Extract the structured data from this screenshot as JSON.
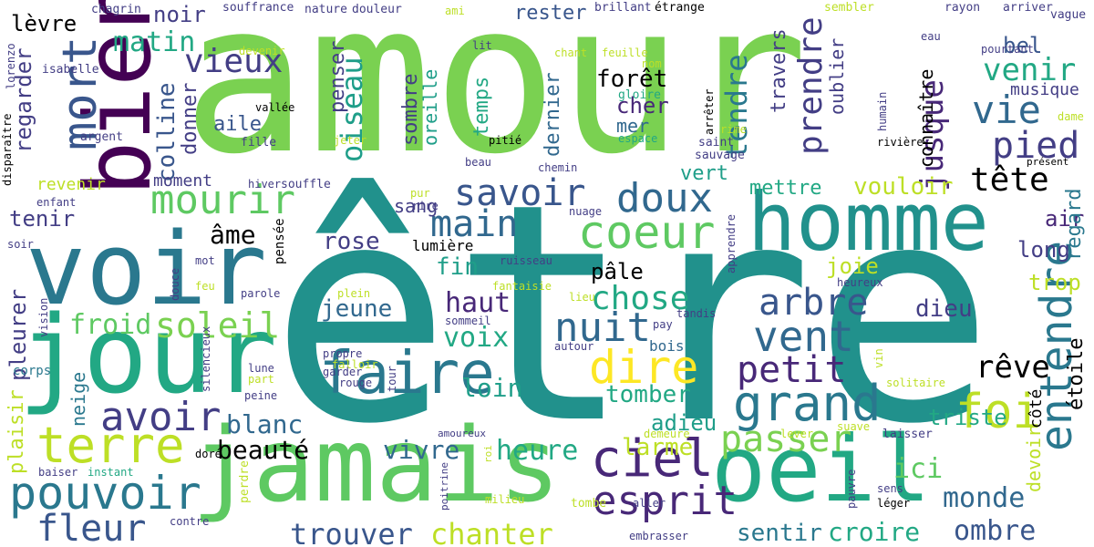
{
  "words": [
    {
      "id": "etre",
      "text": "être",
      "color": "#21918c"
    },
    {
      "id": "amour",
      "text": "amour",
      "color": "#7ad151"
    },
    {
      "id": "jour",
      "text": "jour",
      "color": "#22a884"
    },
    {
      "id": "voir",
      "text": "voir",
      "color": "#2a788e"
    },
    {
      "id": "bien",
      "text": "bien",
      "color": "#440154"
    },
    {
      "id": "homme",
      "text": "homme",
      "color": "#21918c"
    },
    {
      "id": "jamais",
      "text": "jamais",
      "color": "#5ec962"
    },
    {
      "id": "oeil",
      "text": "oeil",
      "color": "#22a884"
    },
    {
      "id": "mort",
      "text": "mort",
      "color": "#39568c"
    },
    {
      "id": "coeur",
      "text": "coeur",
      "color": "#5ec962"
    },
    {
      "id": "faire",
      "text": "faire",
      "color": "#2a788e"
    },
    {
      "id": "entendre",
      "text": "entendre",
      "color": "#2a788e"
    },
    {
      "id": "mourir",
      "text": "mourir",
      "color": "#5ec962"
    },
    {
      "id": "terre",
      "text": "terre",
      "color": "#bddf26"
    },
    {
      "id": "pouvoir",
      "text": "pouvoir",
      "color": "#2a788e"
    },
    {
      "id": "avoir",
      "text": "avoir",
      "color": "#433e85"
    },
    {
      "id": "ciel",
      "text": "ciel",
      "color": "#482878"
    },
    {
      "id": "grand",
      "text": "grand",
      "color": "#2a788e"
    },
    {
      "id": "nuit",
      "text": "nuit",
      "color": "#31688e"
    },
    {
      "id": "dire",
      "text": "dire",
      "color": "#fde725"
    },
    {
      "id": "vent",
      "text": "vent",
      "color": "#31688e"
    },
    {
      "id": "foi",
      "text": "foi",
      "color": "#bddf26"
    },
    {
      "id": "doux",
      "text": "doux",
      "color": "#31688e"
    },
    {
      "id": "main",
      "text": "main",
      "color": "#31688e"
    },
    {
      "id": "savoir",
      "text": "savoir",
      "color": "#39568c"
    },
    {
      "id": "esprit",
      "text": "esprit",
      "color": "#482878"
    },
    {
      "id": "fleur",
      "text": "fleur",
      "color": "#39568c"
    },
    {
      "id": "vieux",
      "text": "vieux",
      "color": "#433e85"
    },
    {
      "id": "vie",
      "text": "vie",
      "color": "#31688e"
    },
    {
      "id": "prendre",
      "text": "prendre",
      "color": "#433e85"
    },
    {
      "id": "pied",
      "text": "pied",
      "color": "#433e85"
    },
    {
      "id": "passer",
      "text": "passer",
      "color": "#7ad151"
    },
    {
      "id": "arbre",
      "text": "arbre",
      "color": "#39568c"
    },
    {
      "id": "petit",
      "text": "petit",
      "color": "#482878"
    },
    {
      "id": "soleil",
      "text": "soleil",
      "color": "#7ad151"
    },
    {
      "id": "chose",
      "text": "chose",
      "color": "#22a884"
    },
    {
      "id": "oiseau",
      "text": "oiseau",
      "color": "#1f9e89"
    },
    {
      "id": "tete",
      "text": "tête",
      "color": "#bddf26"
    },
    {
      "id": "tendre",
      "text": "tendre",
      "color": "#2a788e"
    },
    {
      "id": "reve",
      "text": "rêve",
      "color": "#22a884"
    },
    {
      "id": "venir",
      "text": "venir",
      "color": "#22a884"
    },
    {
      "id": "jusque",
      "text": "jusque",
      "color": "#482878"
    },
    {
      "id": "matin",
      "text": "matin",
      "color": "#22a884"
    },
    {
      "id": "chanter",
      "text": "chanter",
      "color": "#bddf26"
    },
    {
      "id": "trouver",
      "text": "trouver",
      "color": "#39568c"
    },
    {
      "id": "heure",
      "text": "heure",
      "color": "#22a884"
    },
    {
      "id": "ombre",
      "text": "ombre",
      "color": "#39568c"
    },
    {
      "id": "monde",
      "text": "monde",
      "color": "#31688e"
    },
    {
      "id": "ici",
      "text": "ici",
      "color": "#5ec962"
    },
    {
      "id": "beaute",
      "text": "beauté",
      "color": "#39568c"
    },
    {
      "id": "blanc",
      "text": "blanc",
      "color": "#31688e"
    },
    {
      "id": "froid",
      "text": "froid",
      "color": "#5ec962"
    },
    {
      "id": "voix",
      "text": "voix",
      "color": "#22a884"
    },
    {
      "id": "haut",
      "text": "haut",
      "color": "#482878"
    },
    {
      "id": "loin",
      "text": "loin",
      "color": "#1f9e89"
    },
    {
      "id": "vivre",
      "text": "vivre",
      "color": "#31688e"
    },
    {
      "id": "larme",
      "text": "larme",
      "color": "#bddf26"
    },
    {
      "id": "tomber",
      "text": "tomber",
      "color": "#22a884"
    },
    {
      "id": "croire",
      "text": "croire",
      "color": "#22a884"
    },
    {
      "id": "sentir",
      "text": "sentir",
      "color": "#2a788e"
    },
    {
      "id": "adieu",
      "text": "adieu",
      "color": "#1f9e89"
    },
    {
      "id": "triste",
      "text": "triste",
      "color": "#22a884"
    },
    {
      "id": "dieu",
      "text": "dieu",
      "color": "#433e85"
    },
    {
      "id": "trop",
      "text": "trop",
      "color": "#bddf26"
    },
    {
      "id": "long",
      "text": "long",
      "color": "#433e85"
    },
    {
      "id": "air",
      "text": "air",
      "color": "#482878"
    },
    {
      "id": "regard",
      "text": "regard",
      "color": "#2a788e"
    },
    {
      "id": "etoile",
      "text": "étoile",
      "color": "#31688e"
    },
    {
      "id": "devoir",
      "text": "devoir",
      "color": "#bddf26"
    },
    {
      "id": "cote",
      "text": "côté",
      "color": "#bddf26"
    },
    {
      "id": "joie",
      "text": "joie",
      "color": "#bddf26"
    },
    {
      "id": "vouloir",
      "text": "vouloir",
      "color": "#bddf26"
    },
    {
      "id": "mettre",
      "text": "mettre",
      "color": "#22a884"
    },
    {
      "id": "vert",
      "text": "vert",
      "color": "#1f9e89"
    },
    {
      "id": "pale",
      "text": "pâle",
      "color": "#2a788e"
    },
    {
      "id": "fin",
      "text": "fin",
      "color": "#1f9e89"
    },
    {
      "id": "rose",
      "text": "rose",
      "color": "#433e85"
    },
    {
      "id": "jeune",
      "text": "jeune",
      "color": "#31688e"
    },
    {
      "id": "ame",
      "text": "âme",
      "color": "#22a884"
    },
    {
      "id": "tenir",
      "text": "tenir",
      "color": "#433e85"
    },
    {
      "id": "pleurer",
      "text": "pleurer",
      "color": "#433e85"
    },
    {
      "id": "plaisir",
      "text": "plaisir",
      "color": "#bddf26"
    },
    {
      "id": "neige",
      "text": "neige",
      "color": "#2a788e"
    },
    {
      "id": "corps",
      "text": "corps",
      "color": "#2a788e"
    },
    {
      "id": "regarder",
      "text": "regarder",
      "color": "#433e85"
    },
    {
      "id": "levre",
      "text": "lèvre",
      "color": "#482878"
    },
    {
      "id": "noir",
      "text": "noir",
      "color": "#433e85"
    },
    {
      "id": "colline",
      "text": "colline",
      "color": "#39568c"
    },
    {
      "id": "donner",
      "text": "donner",
      "color": "#433e85"
    },
    {
      "id": "aile",
      "text": "aile",
      "color": "#39568c"
    },
    {
      "id": "bel",
      "text": "bel",
      "color": "#39568c"
    },
    {
      "id": "rester",
      "text": "rester",
      "color": "#39568c"
    },
    {
      "id": "foret",
      "text": "forêt",
      "color": "#39568c"
    },
    {
      "id": "cher",
      "text": "cher",
      "color": "#482878"
    },
    {
      "id": "mer",
      "text": "mer",
      "color": "#31688e"
    },
    {
      "id": "penser",
      "text": "penser",
      "color": "#433e85"
    },
    {
      "id": "temps",
      "text": "temps",
      "color": "#22a884"
    },
    {
      "id": "sombre",
      "text": "sombre",
      "color": "#433e85"
    },
    {
      "id": "oreille",
      "text": "oreille",
      "color": "#1f9e89"
    },
    {
      "id": "dernier",
      "text": "dernier",
      "color": "#31688e"
    },
    {
      "id": "travers",
      "text": "travers",
      "color": "#433e85"
    },
    {
      "id": "oublier",
      "text": "oublier",
      "color": "#433e85"
    },
    {
      "id": "connaitre",
      "text": "connaître",
      "color": "#433e85"
    },
    {
      "id": "musique",
      "text": "musique",
      "color": "#433e85"
    },
    {
      "id": "moment",
      "text": "moment",
      "color": "#433e85"
    },
    {
      "id": "revenir",
      "text": "revenir",
      "color": "#bddf26"
    },
    {
      "id": "sang",
      "text": "sang",
      "color": "#433e85"
    },
    {
      "id": "lumiere",
      "text": "lumière",
      "color": "#bddf26"
    },
    {
      "id": "pensee",
      "text": "pensée",
      "color": "#482878"
    },
    {
      "id": "bois",
      "text": "bois",
      "color": "#31688e"
    },
    {
      "id": "souffrance",
      "text": "souffrance",
      "color": "#433e85"
    },
    {
      "id": "nature",
      "text": "nature",
      "color": "#433e85"
    },
    {
      "id": "douleur",
      "text": "douleur",
      "color": "#433e85"
    },
    {
      "id": "chagrin",
      "text": "chagrin",
      "color": "#433e85"
    },
    {
      "id": "brillant",
      "text": "brillant",
      "color": "#433e85"
    },
    {
      "id": "etrange",
      "text": "étrange",
      "color": "#433e85"
    },
    {
      "id": "sembler",
      "text": "sembler",
      "color": "#bddf26"
    },
    {
      "id": "rayon",
      "text": "rayon",
      "color": "#433e85"
    },
    {
      "id": "arriver",
      "text": "arriver",
      "color": "#433e85"
    },
    {
      "id": "vague",
      "text": "vague",
      "color": "#433e85"
    },
    {
      "id": "lorenzo",
      "text": "lorenzo",
      "color": "#433e85"
    },
    {
      "id": "isabelle",
      "text": "isabelle",
      "color": "#433e85"
    },
    {
      "id": "devenir",
      "text": "devenir",
      "color": "#bddf26"
    },
    {
      "id": "vallee",
      "text": "vallée",
      "color": "#5ec962"
    },
    {
      "id": "ami",
      "text": "ami",
      "color": "#bddf26"
    },
    {
      "id": "lit",
      "text": "lit",
      "color": "#433e85"
    },
    {
      "id": "chant",
      "text": "chant",
      "color": "#bddf26"
    },
    {
      "id": "feuille",
      "text": "feuille",
      "color": "#bddf26"
    },
    {
      "id": "nom",
      "text": "nom",
      "color": "#bddf26"
    },
    {
      "id": "gloire",
      "text": "gloire",
      "color": "#22a884"
    },
    {
      "id": "humain",
      "text": "humain",
      "color": "#433e85"
    },
    {
      "id": "eau",
      "text": "eau",
      "color": "#433e85"
    },
    {
      "id": "pourtant",
      "text": "pourtant",
      "color": "#433e85"
    },
    {
      "id": "dame",
      "text": "dame",
      "color": "#bddf26"
    },
    {
      "id": "disparaitre",
      "text": "disparaître",
      "color": "#433e85"
    },
    {
      "id": "argent",
      "text": "argent",
      "color": "#433e85"
    },
    {
      "id": "fille",
      "text": "fille",
      "color": "#433e85"
    },
    {
      "id": "pitie",
      "text": "pitié",
      "color": "#bddf26"
    },
    {
      "id": "espace",
      "text": "espace",
      "color": "#22a884"
    },
    {
      "id": "arreter",
      "text": "arrêter",
      "color": "#433e85"
    },
    {
      "id": "rime",
      "text": "rime",
      "color": "#bddf26"
    },
    {
      "id": "saint",
      "text": "saint",
      "color": "#433e85"
    },
    {
      "id": "sauvage",
      "text": "sauvage",
      "color": "#433e85"
    },
    {
      "id": "hiver",
      "text": "hiver",
      "color": "#433e85"
    },
    {
      "id": "souffle",
      "text": "souffle",
      "color": "#433e85"
    },
    {
      "id": "jeter",
      "text": "jeter",
      "color": "#bddf26"
    },
    {
      "id": "beau",
      "text": "beau",
      "color": "#433e85"
    },
    {
      "id": "chemin",
      "text": "chemin",
      "color": "#433e85"
    },
    {
      "id": "riviere",
      "text": "rivière",
      "color": "#433e85"
    },
    {
      "id": "present",
      "text": "présent",
      "color": "#433e85"
    },
    {
      "id": "enfant",
      "text": "enfant",
      "color": "#433e85"
    },
    {
      "id": "pur",
      "text": "pur",
      "color": "#bddf26"
    },
    {
      "id": "rire",
      "text": "rire",
      "color": "#433e85"
    },
    {
      "id": "nuage",
      "text": "nuage",
      "color": "#433e85"
    },
    {
      "id": "apprendre",
      "text": "apprendre",
      "color": "#433e85"
    },
    {
      "id": "soir",
      "text": "soir",
      "color": "#433e85"
    },
    {
      "id": "mot",
      "text": "mot",
      "color": "#433e85"
    },
    {
      "id": "feu",
      "text": "feu",
      "color": "#bddf26"
    },
    {
      "id": "douce",
      "text": "douce",
      "color": "#433e85"
    },
    {
      "id": "parole",
      "text": "parole",
      "color": "#433e85"
    },
    {
      "id": "plein",
      "text": "plein",
      "color": "#bddf26"
    },
    {
      "id": "fantaisie",
      "text": "fantaisie",
      "color": "#bddf26"
    },
    {
      "id": "ruisseau",
      "text": "ruisseau",
      "color": "#433e85"
    },
    {
      "id": "lieu",
      "text": "lieu",
      "color": "#bddf26"
    },
    {
      "id": "tandis",
      "text": "tandis",
      "color": "#433e85"
    },
    {
      "id": "heureux",
      "text": "heureux",
      "color": "#433e85"
    },
    {
      "id": "vision",
      "text": "vision",
      "color": "#433e85"
    },
    {
      "id": "sommeil",
      "text": "sommeil",
      "color": "#433e85"
    },
    {
      "id": "pay",
      "text": "pay",
      "color": "#433e85"
    },
    {
      "id": "autour",
      "text": "autour",
      "color": "#433e85"
    },
    {
      "id": "silencieux",
      "text": "silencieux",
      "color": "#433e85"
    },
    {
      "id": "propre",
      "text": "propre",
      "color": "#433e85"
    },
    {
      "id": "falloir",
      "text": "falloir",
      "color": "#bddf26"
    },
    {
      "id": "garder",
      "text": "garder",
      "color": "#433e85"
    },
    {
      "id": "lune",
      "text": "lune",
      "color": "#433e85"
    },
    {
      "id": "part",
      "text": "part",
      "color": "#bddf26"
    },
    {
      "id": "rouge",
      "text": "rouge",
      "color": "#433e85"
    },
    {
      "id": "tour",
      "text": "tour",
      "color": "#433e85"
    },
    {
      "id": "vin",
      "text": "vin",
      "color": "#bddf26"
    },
    {
      "id": "solitaire",
      "text": "solitaire",
      "color": "#bddf26"
    },
    {
      "id": "peine",
      "text": "peine",
      "color": "#433e85"
    },
    {
      "id": "amoureux",
      "text": "amoureux",
      "color": "#433e85"
    },
    {
      "id": "suave",
      "text": "suave",
      "color": "#bddf26"
    },
    {
      "id": "laisser",
      "text": "laisser",
      "color": "#433e85"
    },
    {
      "id": "demeure",
      "text": "demeure",
      "color": "#bddf26"
    },
    {
      "id": "lever",
      "text": "lever",
      "color": "#bddf26"
    },
    {
      "id": "dore",
      "text": "doré",
      "color": "#bddf26"
    },
    {
      "id": "baiser",
      "text": "baiser",
      "color": "#433e85"
    },
    {
      "id": "instant",
      "text": "instant",
      "color": "#22a884"
    },
    {
      "id": "perdre",
      "text": "perdre",
      "color": "#bddf26"
    },
    {
      "id": "poitrine",
      "text": "poitrine",
      "color": "#433e85"
    },
    {
      "id": "roi",
      "text": "roi",
      "color": "#bddf26"
    },
    {
      "id": "pauvre",
      "text": "pauvre",
      "color": "#433e85"
    },
    {
      "id": "sens",
      "text": "sens",
      "color": "#433e85"
    },
    {
      "id": "leger",
      "text": "léger",
      "color": "#bddf26"
    },
    {
      "id": "milieu",
      "text": "milieu",
      "color": "#bddf26"
    },
    {
      "id": "tombe",
      "text": "tombe",
      "color": "#bddf26"
    },
    {
      "id": "aller",
      "text": "aller",
      "color": "#433e85"
    },
    {
      "id": "contre",
      "text": "contre",
      "color": "#433e85"
    },
    {
      "id": "embrasser",
      "text": "embrasser",
      "color": "#433e85"
    }
  ]
}
